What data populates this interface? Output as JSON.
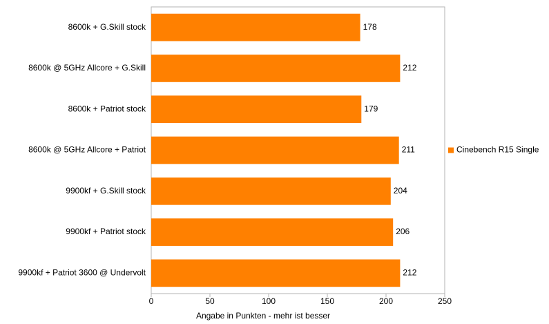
{
  "chart_data": {
    "type": "bar",
    "orientation": "horizontal",
    "x_label": "Angabe in Punkten - mehr ist besser",
    "categories": [
      "8600k + G.Skill stock",
      "8600k @ 5GHz Allcore + G.Skill",
      "8600k + Patriot stock",
      "8600k @ 5GHz Allcore + Patriot",
      "9900kf + G.Skill stock",
      "9900kf + Patriot stock",
      "9900kf + Patriot 3600 @ Undervolt"
    ],
    "series": [
      {
        "name": "Cinebench R15 Single",
        "color": "#ff8000",
        "values": [
          178,
          212,
          179,
          211,
          204,
          206,
          212
        ]
      }
    ],
    "xlim": [
      0,
      250
    ],
    "xticks": [
      0,
      50,
      100,
      150,
      200,
      250
    ],
    "grid": false,
    "legend": "right"
  }
}
